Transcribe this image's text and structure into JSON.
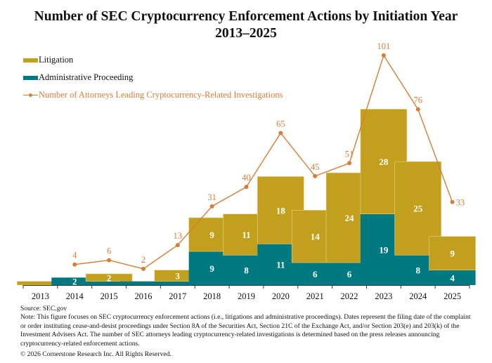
{
  "chart_data": {
    "type": "bar",
    "title": "Number of SEC Cryptocurrency Enforcement Actions by Initiation Year",
    "subtitle": "2013–2025",
    "xlabel": "",
    "ylabel": "",
    "grid": false,
    "stacked": true,
    "legend_position": "top-left",
    "categories": [
      "2013",
      "2014",
      "2015",
      "2016",
      "2017",
      "2018",
      "2019",
      "2020",
      "2021",
      "2022",
      "2023",
      "2024",
      "2025"
    ],
    "series": [
      {
        "name": "Administrative Proceeding",
        "type": "bar",
        "color": "#007a80",
        "values": [
          0,
          2,
          1,
          1,
          1,
          9,
          8,
          11,
          6,
          6,
          19,
          8,
          4
        ],
        "labels": [
          null,
          "2",
          null,
          null,
          null,
          "9",
          "8",
          "11",
          "6",
          "6",
          "19",
          "8",
          "4"
        ]
      },
      {
        "name": "Litigation",
        "type": "bar",
        "color": "#c2a01e",
        "values": [
          1,
          0,
          2,
          0,
          3,
          9,
          11,
          18,
          14,
          24,
          28,
          25,
          9
        ],
        "labels": [
          null,
          null,
          "2",
          null,
          "3",
          "9",
          "11",
          "18",
          "14",
          "24",
          "28",
          "25",
          "9"
        ]
      },
      {
        "name": "Number of Attorneys Leading Cryptocurrency-Related Investigations",
        "type": "line",
        "color": "#d77d36",
        "values": [
          null,
          4,
          6,
          2,
          13,
          31,
          40,
          65,
          45,
          51,
          101,
          76,
          33
        ]
      }
    ],
    "bar_ylim": [
      0,
      50
    ],
    "line_ylim": [
      0,
      105
    ]
  },
  "legend": {
    "items": [
      {
        "label": "Litigation",
        "color": "#c2a01e",
        "kind": "bar"
      },
      {
        "label": "Administrative Proceeding",
        "color": "#007a80",
        "kind": "bar"
      },
      {
        "label": "Number of Attorneys Leading Cryptocurrency-Related Investigations",
        "color": "#d77d36",
        "kind": "line"
      }
    ]
  },
  "footer": {
    "source": "Source: SEC.gov",
    "note": "Note: This figure focuses on SEC cryptocurrency enforcement actions (i.e., litigations and administrative proceedings). Dates represent the filing date of the complaint or order instituting cease-and-desist proceedings under Section 8A of the Securities Act, Section 21C of the Exchange Act, and/or Section 203(e) and 203(k) of the Investment Advisers Act. The number of SEC attorneys leading cryptocurrency-related investigations is determined based on the press releases announcing cryptocurrency-related enforcement actions.",
    "copyright": "© 2026 Cornerstone Research Inc. All Rights Reserved."
  }
}
